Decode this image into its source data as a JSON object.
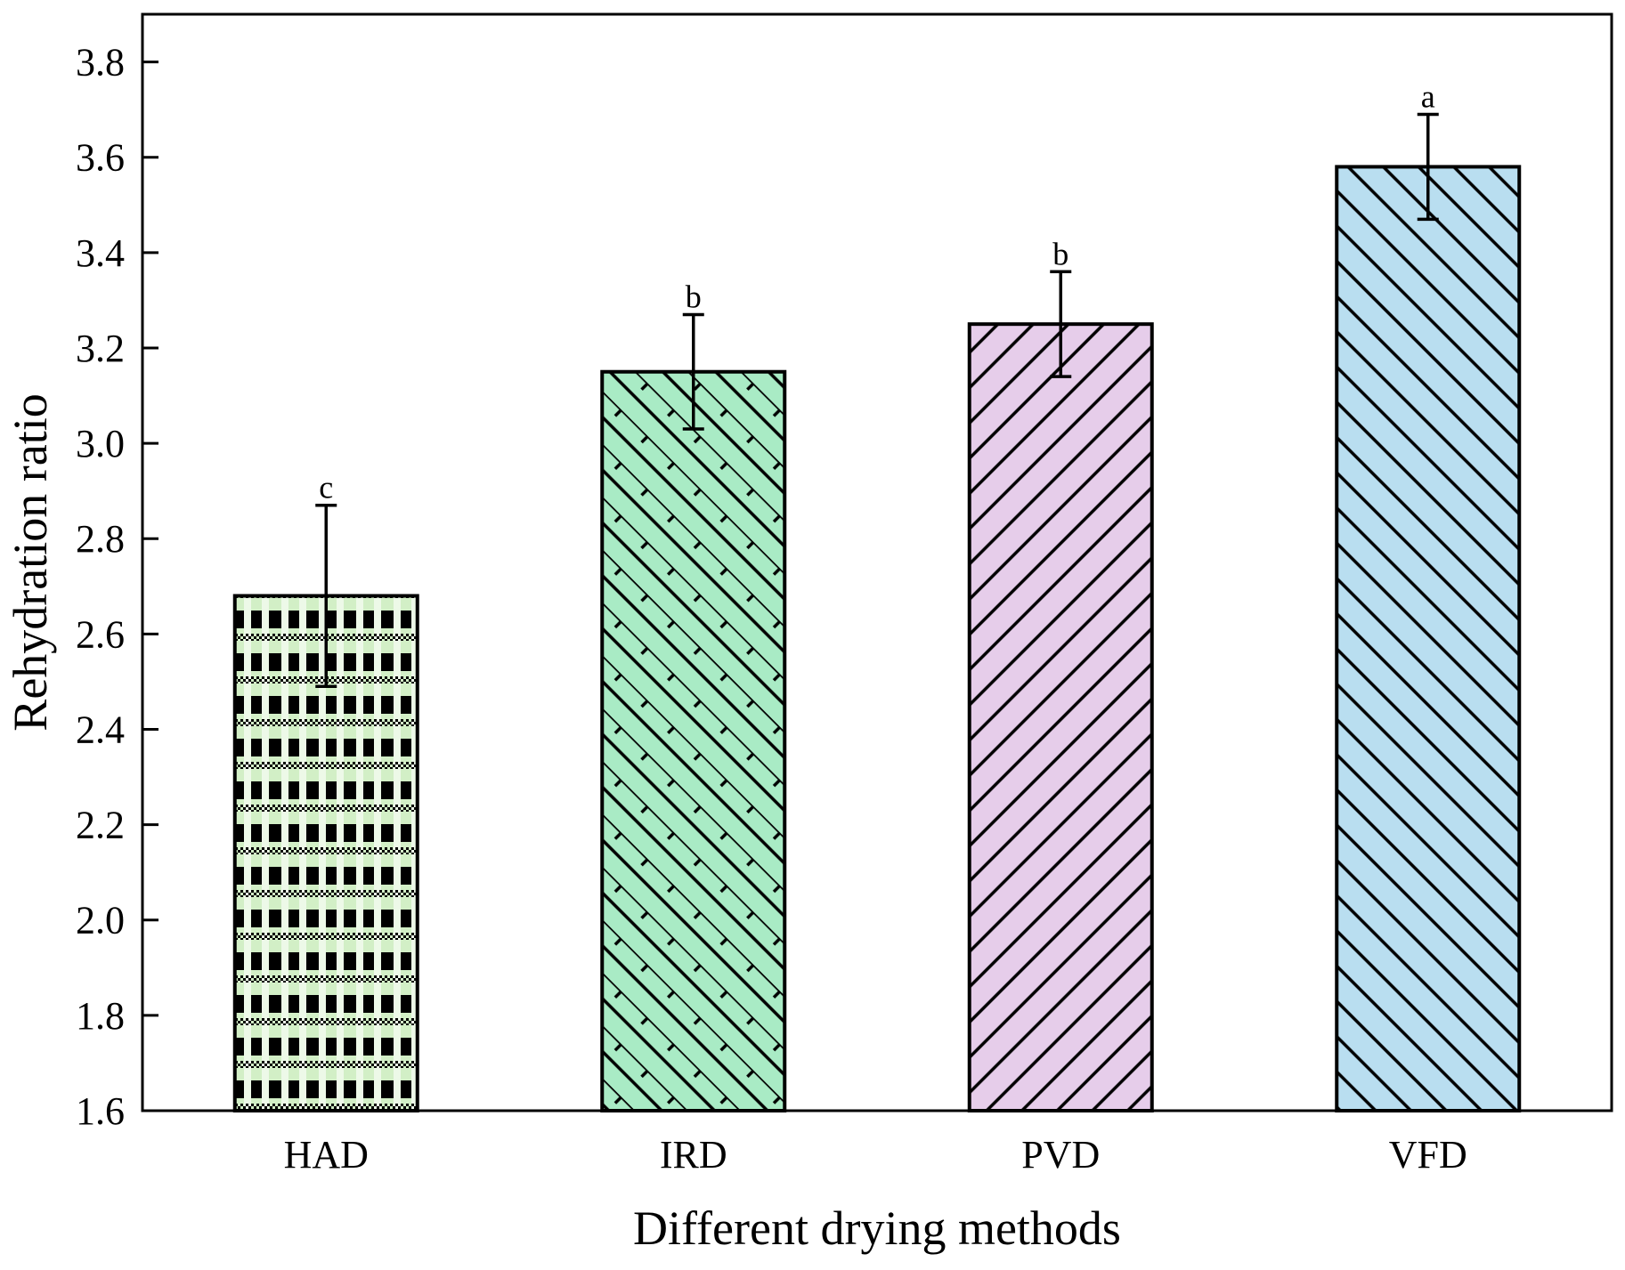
{
  "chart_data": {
    "type": "bar",
    "title": "",
    "xlabel": "Different drying methods",
    "ylabel": "Rehydration ratio",
    "ylim": [
      1.6,
      3.9
    ],
    "yticks": [
      1.6,
      1.8,
      2.0,
      2.2,
      2.4,
      2.6,
      2.8,
      3.0,
      3.2,
      3.4,
      3.6,
      3.8
    ],
    "ytick_labels": [
      "1.6",
      "1.8",
      "2.0",
      "2.2",
      "2.4",
      "2.6",
      "2.8",
      "3.0",
      "3.2",
      "3.4",
      "3.6",
      "3.8"
    ],
    "categories": [
      "HAD",
      "IRD",
      "PVD",
      "VFD"
    ],
    "values": [
      2.68,
      3.15,
      3.25,
      3.58
    ],
    "errors": [
      0.19,
      0.12,
      0.11,
      0.11
    ],
    "significance": [
      "c",
      "b",
      "b",
      "a"
    ],
    "bar_colors": [
      "#d2efc6",
      "#a9ebc5",
      "#e6cdea",
      "#b9def0"
    ],
    "bar_patterns": [
      "checker",
      "crosshatch-diamond",
      "diagonal-forward",
      "diagonal-backward"
    ],
    "grid": false,
    "legend": "none"
  }
}
